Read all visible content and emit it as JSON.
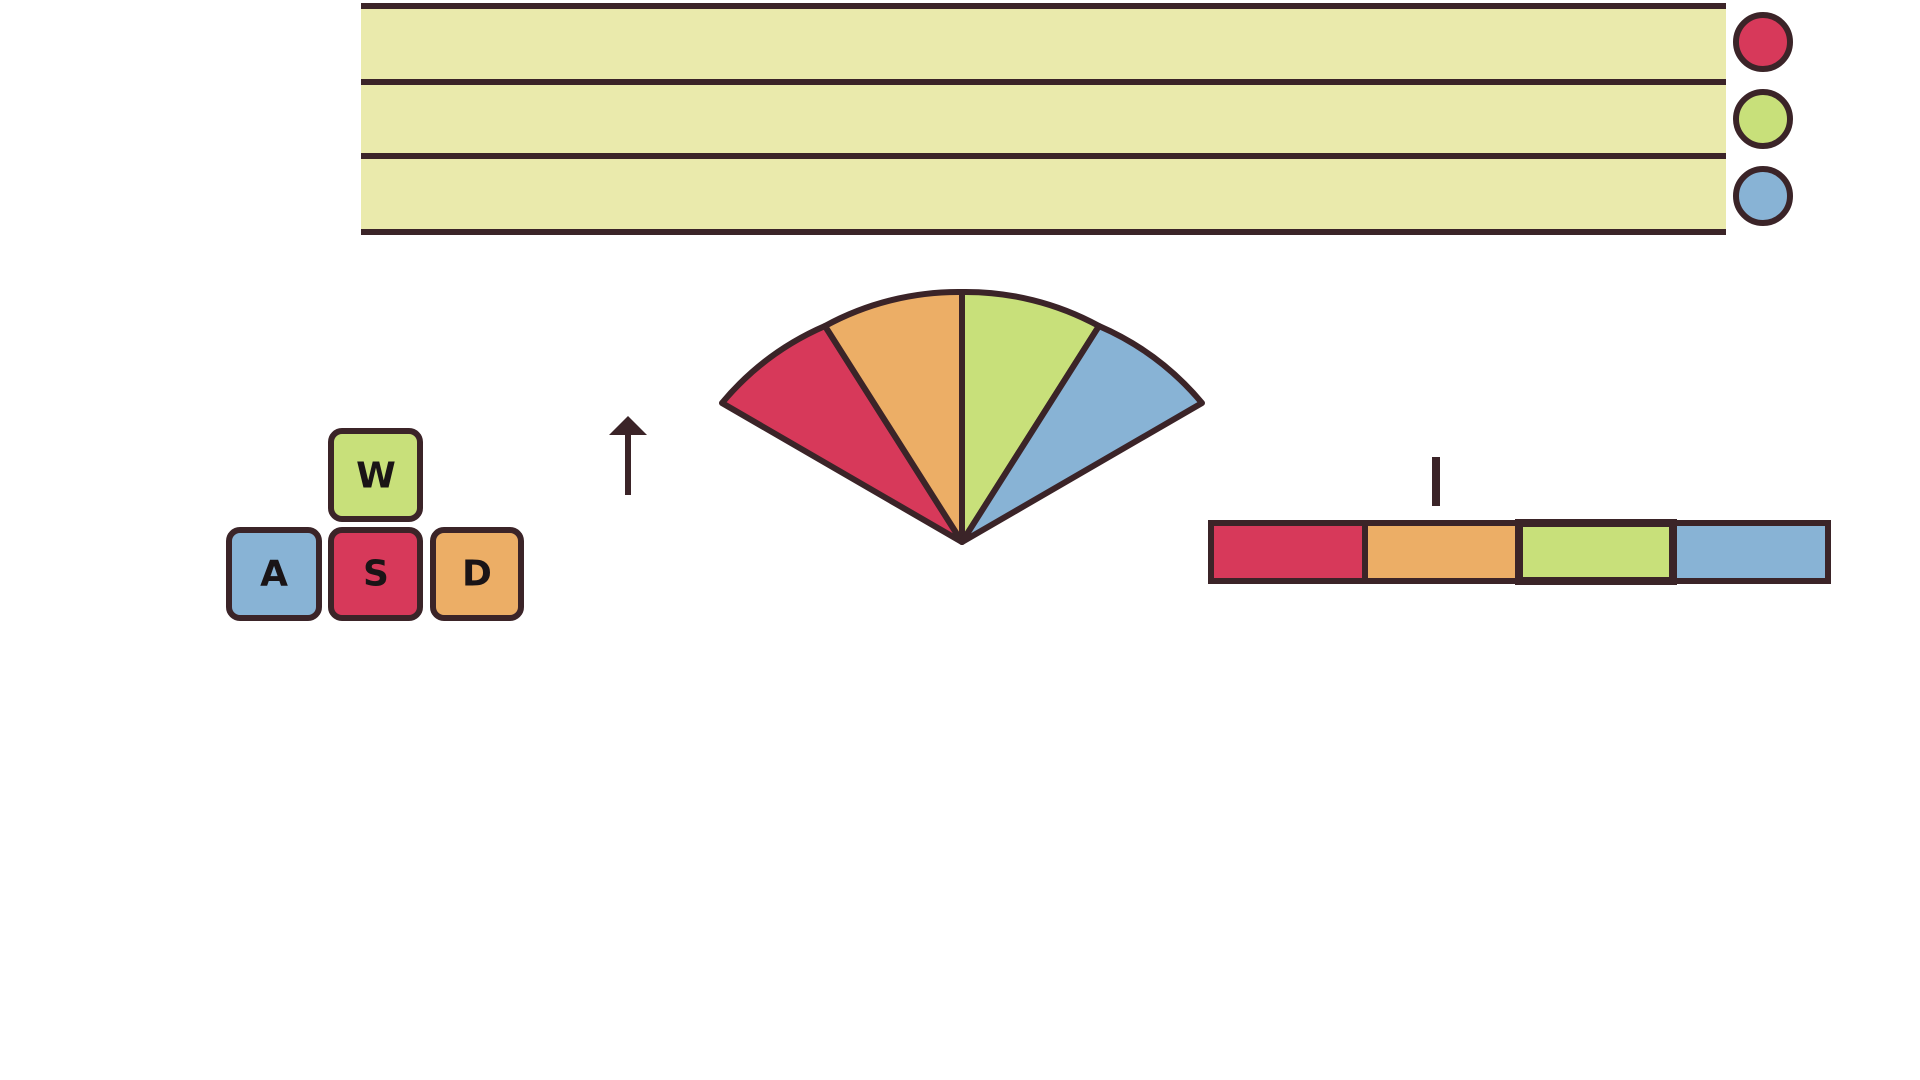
{
  "colors": {
    "outline": "#3b2428",
    "lane_fill": "#eaeaac",
    "red": "#d7395a",
    "orange": "#ecae66",
    "green": "#c8e07a",
    "blue": "#88b3d5",
    "background": "#ffffff"
  },
  "lanes": [
    {
      "indicator_color": "red"
    },
    {
      "indicator_color": "green"
    },
    {
      "indicator_color": "blue"
    }
  ],
  "keys": [
    {
      "letter": "W",
      "color": "green"
    },
    {
      "letter": "A",
      "color": "blue"
    },
    {
      "letter": "S",
      "color": "red"
    },
    {
      "letter": "D",
      "color": "orange"
    }
  ],
  "fan": {
    "segment_colors": [
      "red",
      "orange",
      "green",
      "blue"
    ]
  },
  "color_bar": {
    "segment_colors": [
      "red",
      "orange",
      "green",
      "blue"
    ],
    "highlighted_index": 2
  },
  "arrow": {
    "icon": "arrow-up-icon"
  }
}
